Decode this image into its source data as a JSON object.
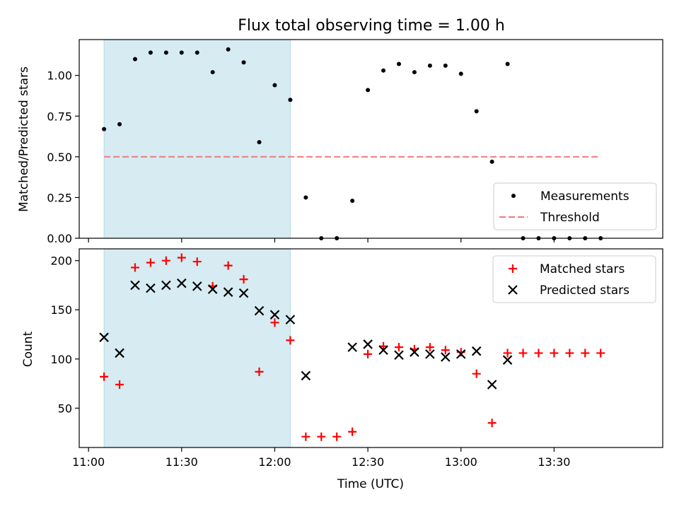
{
  "chart_data": [
    {
      "type": "scatter",
      "title": "Flux total observing time = 1.00 h",
      "xlabel": "",
      "ylabel": "Matched/Predicted stars",
      "xlim": [
        "10:57",
        "14:05"
      ],
      "ylim": [
        0,
        1.22
      ],
      "yticks": [
        "0.00",
        "0.25",
        "0.50",
        "0.75",
        "1.00"
      ],
      "yticks_values": [
        0,
        0.25,
        0.5,
        0.75,
        1.0
      ],
      "shaded_region": {
        "x": [
          "11:05",
          "12:05"
        ],
        "color": "#add8e6"
      },
      "legend": "lower-right",
      "grid": false,
      "series": [
        {
          "name": "Measurements",
          "marker": "dot",
          "color": "#000000",
          "x": [
            "11:05",
            "11:10",
            "11:15",
            "11:20",
            "11:25",
            "11:30",
            "11:35",
            "11:40",
            "11:45",
            "11:50",
            "11:55",
            "12:00",
            "12:05",
            "12:10",
            "12:15",
            "12:20",
            "12:25",
            "12:30",
            "12:35",
            "12:40",
            "12:45",
            "12:50",
            "12:55",
            "13:00",
            "13:05",
            "13:10",
            "13:15",
            "13:20",
            "13:25",
            "13:30",
            "13:35",
            "13:40",
            "13:45"
          ],
          "y": [
            0.67,
            0.7,
            1.1,
            1.14,
            1.14,
            1.14,
            1.14,
            1.02,
            1.16,
            1.08,
            0.59,
            0.94,
            0.85,
            0.25,
            0.0,
            0.0,
            0.23,
            0.91,
            1.03,
            1.07,
            1.02,
            1.06,
            1.06,
            1.01,
            0.78,
            0.47,
            1.07,
            0.0,
            0.0,
            0.0,
            0.0,
            0.0,
            0.0
          ]
        },
        {
          "name": "Threshold",
          "style": "dashed",
          "color": "#f08080",
          "x": [
            "11:05",
            "13:45"
          ],
          "y": [
            0.5,
            0.5
          ]
        }
      ]
    },
    {
      "type": "scatter",
      "title": "",
      "xlabel": "Time (UTC)",
      "ylabel": "Count",
      "xlim": [
        "10:57",
        "14:05"
      ],
      "ylim": [
        10,
        212
      ],
      "xticks": [
        "11:00",
        "11:30",
        "12:00",
        "12:30",
        "13:00",
        "13:30"
      ],
      "yticks": [
        "50",
        "100",
        "150",
        "200"
      ],
      "yticks_values": [
        50,
        100,
        150,
        200
      ],
      "shaded_region": {
        "x": [
          "11:05",
          "12:05"
        ],
        "color": "#add8e6"
      },
      "legend": "upper-right",
      "grid": false,
      "series": [
        {
          "name": "Matched stars",
          "marker": "plus",
          "color": "#ff0000",
          "x": [
            "11:05",
            "11:10",
            "11:15",
            "11:20",
            "11:25",
            "11:30",
            "11:35",
            "11:40",
            "11:45",
            "11:50",
            "11:55",
            "12:00",
            "12:05",
            "12:10",
            "12:15",
            "12:20",
            "12:25",
            "12:30",
            "12:35",
            "12:40",
            "12:45",
            "12:50",
            "12:55",
            "13:00",
            "13:05",
            "13:10",
            "13:15",
            "13:20",
            "13:25",
            "13:30",
            "13:35",
            "13:40",
            "13:45"
          ],
          "y": [
            82,
            74,
            193,
            198,
            200,
            203,
            199,
            174,
            195,
            181,
            87,
            137,
            119,
            21,
            21,
            21,
            26,
            105,
            113,
            112,
            110,
            112,
            109,
            107,
            85,
            35,
            106,
            106,
            106,
            106,
            106,
            106,
            106
          ]
        },
        {
          "name": "Predicted stars",
          "marker": "x",
          "color": "#000000",
          "x": [
            "11:05",
            "11:10",
            "11:15",
            "11:20",
            "11:25",
            "11:30",
            "11:35",
            "11:40",
            "11:45",
            "11:50",
            "11:55",
            "12:00",
            "12:05",
            "12:10",
            "12:25",
            "12:30",
            "12:35",
            "12:40",
            "12:45",
            "12:50",
            "12:55",
            "13:00",
            "13:05",
            "13:10",
            "13:15"
          ],
          "y": [
            122,
            106,
            175,
            172,
            175,
            177,
            174,
            171,
            168,
            167,
            149,
            145,
            140,
            83,
            112,
            115,
            109,
            104,
            107,
            105,
            102,
            105,
            108,
            74,
            99
          ]
        }
      ]
    }
  ]
}
